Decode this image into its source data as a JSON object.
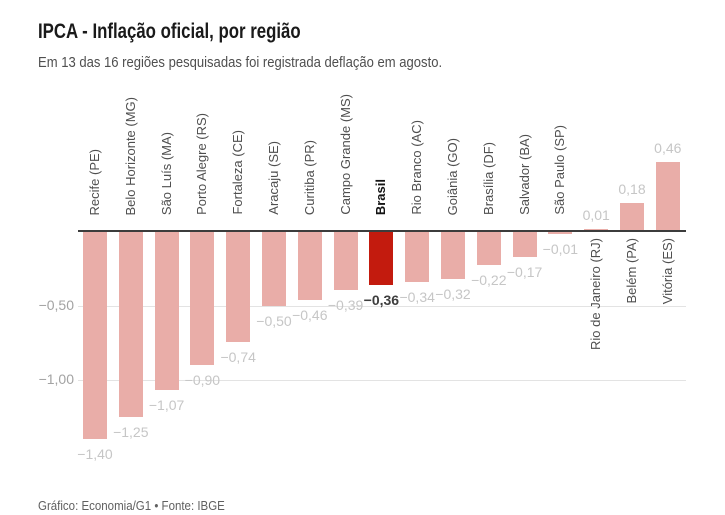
{
  "header": {
    "title": "IPCA - Inflação oficial, por região",
    "subtitle": "Em 13 das 16 regiões pesquisadas foi registrada deflação em agosto."
  },
  "footer": {
    "credit": "Gráfico: Economia/G1 • Fonte: IBGE"
  },
  "chart_data": {
    "type": "bar",
    "title": "IPCA - Inflação oficial, por região",
    "subtitle": "Em 13 das 16 regiões pesquisadas foi registrada deflação em agosto.",
    "categories": [
      "Recife (PE)",
      "Belo Horizonte (MG)",
      "São Luís (MA)",
      "Porto Alegre (RS)",
      "Fortaleza (CE)",
      "Aracaju (SE)",
      "Curitiba (PR)",
      "Campo Grande (MS)",
      "Brasil",
      "Rio Branco (AC)",
      "Goiânia (GO)",
      "Brasília (DF)",
      "Salvador (BA)",
      "São Paulo (SP)",
      "Rio de Janeiro (RJ)",
      "Belém (PA)",
      "Vitória (ES)"
    ],
    "values": [
      -1.4,
      -1.25,
      -1.07,
      -0.9,
      -0.74,
      -0.5,
      -0.46,
      -0.39,
      -0.36,
      -0.34,
      -0.32,
      -0.22,
      -0.17,
      -0.01,
      0.01,
      0.18,
      0.46
    ],
    "value_labels": [
      "−1,40",
      "−1,25",
      "−1,07",
      "−0,90",
      "−0,74",
      "−0,50",
      "−0,46",
      "−0,39",
      "−0,36",
      "−0,34",
      "−0,32",
      "−0,22",
      "−0,17",
      "−0,01",
      "0,01",
      "0,18",
      "0,46"
    ],
    "highlight_category": "Brasil",
    "highlight_index": 8,
    "y_ticks": [
      {
        "value": -0.5,
        "label": "−0,50"
      },
      {
        "value": -1.0,
        "label": "−1,00"
      }
    ],
    "ylim": [
      -1.55,
      0.62
    ],
    "grid": true,
    "legend": false,
    "xlabel": "",
    "ylabel": "",
    "colors": {
      "bar": "#e9ada8",
      "highlight": "#c31b0e",
      "value_label": "#c6c6c6",
      "highlight_value_label": "#3d3d3d",
      "axis_line": "#3c3c3c",
      "gridline": "#e3e3e3"
    }
  }
}
